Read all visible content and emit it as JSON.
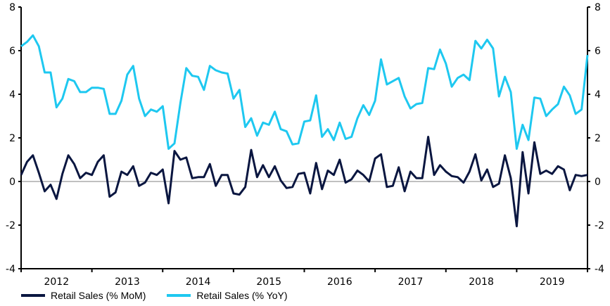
{
  "chart_data": {
    "type": "line",
    "title": "",
    "xlabel": "",
    "ylabel": "",
    "ylim": [
      -4,
      8
    ],
    "y2lim": [
      -4,
      8
    ],
    "yticks": [
      -4,
      -2,
      0,
      2,
      4,
      6,
      8
    ],
    "xtick_labels": [
      "2012",
      "2013",
      "2014",
      "2015",
      "2016",
      "2017",
      "2018",
      "2019"
    ],
    "grid": false,
    "legend_position": "bottom",
    "series": [
      {
        "name": "Retail Sales (% MoM)",
        "color": "#0a1640",
        "axis": "left",
        "values": [
          0.3,
          0.9,
          1.2,
          0.4,
          -0.45,
          -0.15,
          -0.8,
          0.35,
          1.2,
          0.8,
          0.15,
          0.4,
          0.3,
          0.9,
          1.2,
          -0.7,
          -0.5,
          0.45,
          0.3,
          0.7,
          -0.2,
          -0.05,
          0.4,
          0.3,
          0.55,
          -1.0,
          1.4,
          1.0,
          1.1,
          0.15,
          0.2,
          0.2,
          0.8,
          -0.2,
          0.3,
          0.3,
          -0.55,
          -0.6,
          -0.25,
          1.45,
          0.2,
          0.75,
          0.2,
          0.7,
          0.05,
          -0.3,
          -0.25,
          0.35,
          0.4,
          -0.55,
          0.85,
          -0.35,
          0.5,
          0.3,
          1.0,
          -0.05,
          0.1,
          0.5,
          0.3,
          0.0,
          1.05,
          1.25,
          -0.25,
          -0.2,
          0.65,
          -0.45,
          0.45,
          0.15,
          0.15,
          2.05,
          0.3,
          0.75,
          0.45,
          0.25,
          0.2,
          -0.05,
          0.45,
          1.25,
          0.05,
          0.55,
          -0.25,
          -0.1,
          1.2,
          0.15,
          -2.05,
          1.35,
          -0.55,
          1.8,
          0.35,
          0.5,
          0.35,
          0.7,
          0.55,
          -0.4,
          0.3,
          0.25,
          0.3
        ]
      },
      {
        "name": "Retail Sales (% YoY)",
        "color": "#1ec8f0",
        "axis": "right",
        "values": [
          6.2,
          6.4,
          6.7,
          6.2,
          5.0,
          5.0,
          3.4,
          3.8,
          4.7,
          4.6,
          4.1,
          4.1,
          4.3,
          4.3,
          4.25,
          3.1,
          3.1,
          3.7,
          4.9,
          5.3,
          3.8,
          3.0,
          3.3,
          3.2,
          3.45,
          1.5,
          1.75,
          3.6,
          5.2,
          4.85,
          4.8,
          4.2,
          5.3,
          5.1,
          5.0,
          4.95,
          3.8,
          4.2,
          2.5,
          2.9,
          2.1,
          2.7,
          2.6,
          3.2,
          2.4,
          2.3,
          1.7,
          1.75,
          2.75,
          2.8,
          3.95,
          2.05,
          2.4,
          1.9,
          2.7,
          1.95,
          2.05,
          2.9,
          3.5,
          3.05,
          3.7,
          5.6,
          4.45,
          4.6,
          4.75,
          3.9,
          3.35,
          3.55,
          3.6,
          5.2,
          5.15,
          6.05,
          5.4,
          4.35,
          4.75,
          4.9,
          4.65,
          6.45,
          6.1,
          6.5,
          6.1,
          3.9,
          4.8,
          4.1,
          1.5,
          2.6,
          1.9,
          3.85,
          3.8,
          3.0,
          3.3,
          3.55,
          4.35,
          3.95,
          3.1,
          3.3,
          5.8
        ]
      }
    ]
  },
  "legend": {
    "items": [
      {
        "label": "Retail Sales (% MoM)",
        "color": "#0a1640"
      },
      {
        "label": "Retail Sales (% YoY)",
        "color": "#1ec8f0"
      }
    ]
  }
}
